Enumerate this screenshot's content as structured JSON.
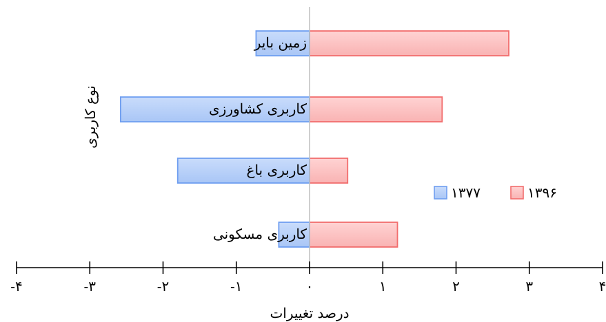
{
  "chart_data": {
    "type": "bar",
    "orientation": "horizontal",
    "categories": [
      "زمین بایر",
      "کاربری کشاورزی",
      "کاربری باغ",
      "کاربری مسکونی"
    ],
    "series": [
      {
        "name": "۱۳۹۶",
        "values": [
          2.72,
          1.81,
          0.52,
          1.2
        ],
        "color": "#f26d6d"
      },
      {
        "name": "۱۳۷۷",
        "values": [
          -0.73,
          -2.58,
          -1.8,
          -0.42
        ],
        "color": "#6f9ef0"
      }
    ],
    "xlabel": "درصد تغییرات",
    "ylabel": "نوع کاربری",
    "xlim": [
      -4,
      4
    ],
    "xticks": [
      -4,
      -3,
      -2,
      -1,
      0,
      1,
      2,
      3,
      4
    ],
    "xtick_labels": [
      "-۴",
      "-۳",
      "-۲",
      "-۱",
      "۰",
      "۱",
      "۲",
      "۳",
      "۴"
    ],
    "grid": false,
    "legend_position": "right"
  }
}
